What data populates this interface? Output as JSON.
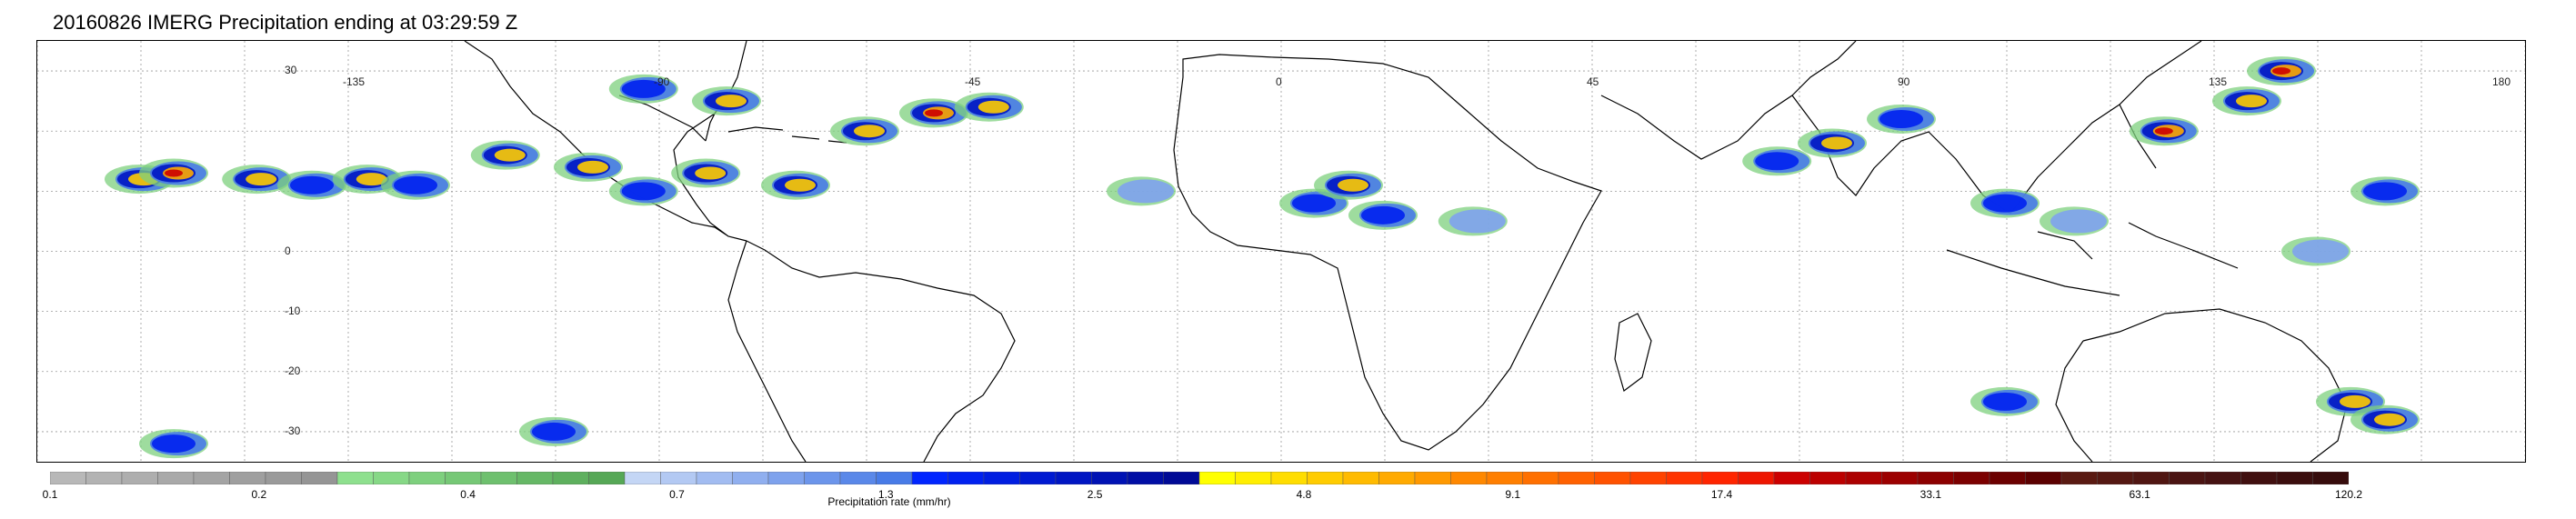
{
  "title": "20160826 IMERG Precipitation ending at 03:29:59 Z",
  "map": {
    "lat_labels": [
      "30",
      "0",
      "-10",
      "-20",
      "-30"
    ],
    "lon_labels": [
      "-135",
      "-90",
      "-45",
      "0",
      "45",
      "90",
      "135",
      "180"
    ],
    "lat_values": [
      30,
      0,
      -10,
      -20,
      -30
    ],
    "lon_values": [
      -135,
      -90,
      -45,
      0,
      45,
      90,
      135,
      180
    ],
    "lon_range": [
      -180,
      180
    ],
    "lat_range": [
      -35,
      35
    ],
    "gridlines": true,
    "precip_cells": [
      {
        "lon": -165,
        "lat": 12,
        "level": 3
      },
      {
        "lon": -160,
        "lat": 13,
        "level": 4
      },
      {
        "lon": -148,
        "lat": 12,
        "level": 3
      },
      {
        "lon": -140,
        "lat": 11,
        "level": 2
      },
      {
        "lon": -132,
        "lat": 12,
        "level": 3
      },
      {
        "lon": -125,
        "lat": 11,
        "level": 2
      },
      {
        "lon": -112,
        "lat": 16,
        "level": 3
      },
      {
        "lon": -100,
        "lat": 14,
        "level": 3
      },
      {
        "lon": -92,
        "lat": 10,
        "level": 2
      },
      {
        "lon": -83,
        "lat": 13,
        "level": 3
      },
      {
        "lon": -70,
        "lat": 11,
        "level": 3
      },
      {
        "lon": -60,
        "lat": 20,
        "level": 3
      },
      {
        "lon": -50,
        "lat": 23,
        "level": 4
      },
      {
        "lon": -42,
        "lat": 24,
        "level": 3
      },
      {
        "lon": -80,
        "lat": 25,
        "level": 3
      },
      {
        "lon": -92,
        "lat": 27,
        "level": 2
      },
      {
        "lon": -20,
        "lat": 10,
        "level": 1
      },
      {
        "lon": 5,
        "lat": 8,
        "level": 2
      },
      {
        "lon": 10,
        "lat": 11,
        "level": 3
      },
      {
        "lon": 15,
        "lat": 6,
        "level": 2
      },
      {
        "lon": 28,
        "lat": 5,
        "level": 1
      },
      {
        "lon": 72,
        "lat": 15,
        "level": 2
      },
      {
        "lon": 80,
        "lat": 18,
        "level": 3
      },
      {
        "lon": 90,
        "lat": 22,
        "level": 2
      },
      {
        "lon": 105,
        "lat": 8,
        "level": 2
      },
      {
        "lon": 115,
        "lat": 5,
        "level": 1
      },
      {
        "lon": 128,
        "lat": 20,
        "level": 4
      },
      {
        "lon": 140,
        "lat": 25,
        "level": 3
      },
      {
        "lon": 145,
        "lat": 30,
        "level": 4
      },
      {
        "lon": 160,
        "lat": 10,
        "level": 2
      },
      {
        "lon": 150,
        "lat": 0,
        "level": 1
      },
      {
        "lon": 155,
        "lat": -25,
        "level": 3
      },
      {
        "lon": 160,
        "lat": -28,
        "level": 3
      },
      {
        "lon": 105,
        "lat": -25,
        "level": 2
      },
      {
        "lon": -105,
        "lat": -30,
        "level": 2
      },
      {
        "lon": -160,
        "lat": -32,
        "level": 2
      }
    ]
  },
  "colorbar": {
    "label": "Precipitation rate (mm/hr)",
    "tick_labels": [
      "0.1",
      "0.2",
      "0.4",
      "0.7",
      "1.3",
      "2.5",
      "4.8",
      "9.1",
      "17.4",
      "33.1",
      "63.1",
      "120.2"
    ],
    "colors": [
      "#b8b8b8",
      "#b3b3b3",
      "#aeaeae",
      "#a9a9a9",
      "#a4a4a4",
      "#9f9f9f",
      "#9a9a9a",
      "#959595",
      "#8ee08e",
      "#86d886",
      "#7ed07e",
      "#76c876",
      "#6ec06e",
      "#66b866",
      "#5eb05e",
      "#56a856",
      "#c4d6f5",
      "#b3c9f3",
      "#a2bcf1",
      "#90afef",
      "#7ea2ed",
      "#6c95eb",
      "#5a88e9",
      "#487be7",
      "#0025ff",
      "#0021f0",
      "#001ee1",
      "#001ad2",
      "#0016c3",
      "#0012b4",
      "#000ea5",
      "#000a96",
      "#ffff00",
      "#ffee00",
      "#ffdd00",
      "#ffcc00",
      "#ffbb00",
      "#ffaa00",
      "#ff9900",
      "#ff8800",
      "#ff7f00",
      "#ff7000",
      "#ff6100",
      "#ff5200",
      "#ff4300",
      "#ff3400",
      "#ff2500",
      "#ee1600",
      "#cc0000",
      "#bc0000",
      "#ac0000",
      "#9c0000",
      "#8c0000",
      "#7c0000",
      "#6c0000",
      "#5c0000",
      "#5a1a12",
      "#551812",
      "#501612",
      "#4b1412",
      "#461212",
      "#411010",
      "#3c0e0e",
      "#370c0c"
    ]
  }
}
